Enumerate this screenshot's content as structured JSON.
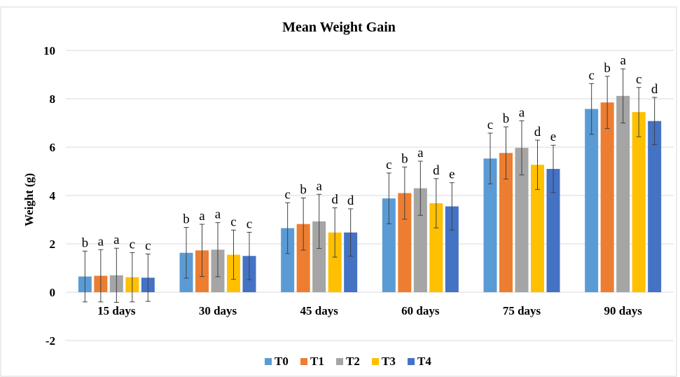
{
  "chart_data": {
    "type": "bar",
    "title": "Mean Weight Gain",
    "xlabel": "",
    "ylabel": "Weight (g)",
    "ylim": [
      -2,
      10
    ],
    "yticks": [
      -2,
      0,
      2,
      4,
      6,
      8,
      10
    ],
    "grid": true,
    "legend_position": "bottom",
    "categories": [
      "15 days",
      "30 days",
      "45 days",
      "60 days",
      "75 days",
      "90 days"
    ],
    "series": [
      {
        "name": "T0",
        "color": "#5B9BD5",
        "values": [
          0.65,
          1.63,
          2.65,
          3.88,
          5.53,
          7.58
        ],
        "errors": [
          1.05,
          1.05,
          1.05,
          1.05,
          1.05,
          1.05
        ],
        "letters": [
          "b",
          "b",
          "c",
          "c",
          "c",
          "c"
        ]
      },
      {
        "name": "T1",
        "color": "#ED7D31",
        "values": [
          0.68,
          1.73,
          2.82,
          4.1,
          5.76,
          7.85
        ],
        "errors": [
          1.08,
          1.08,
          1.08,
          1.08,
          1.08,
          1.08
        ],
        "letters": [
          "a",
          "a",
          "b",
          "b",
          "b",
          "b"
        ]
      },
      {
        "name": "T2",
        "color": "#A5A5A5",
        "values": [
          0.7,
          1.76,
          2.93,
          4.3,
          5.97,
          8.12
        ],
        "errors": [
          1.12,
          1.12,
          1.12,
          1.12,
          1.12,
          1.12
        ],
        "letters": [
          "a",
          "a",
          "a",
          "a",
          "a",
          "a"
        ]
      },
      {
        "name": "T3",
        "color": "#FFC000",
        "values": [
          0.62,
          1.55,
          2.47,
          3.68,
          5.27,
          7.45
        ],
        "errors": [
          1.02,
          1.02,
          1.02,
          1.02,
          1.02,
          1.02
        ],
        "letters": [
          "c",
          "c",
          "d",
          "d",
          "d",
          "c"
        ]
      },
      {
        "name": "T4",
        "color": "#4472C4",
        "values": [
          0.6,
          1.5,
          2.47,
          3.55,
          5.1,
          7.08
        ],
        "errors": [
          0.98,
          0.98,
          0.98,
          0.98,
          0.98,
          0.98
        ],
        "letters": [
          "c",
          "c",
          "d",
          "e",
          "e",
          "d"
        ]
      }
    ]
  }
}
